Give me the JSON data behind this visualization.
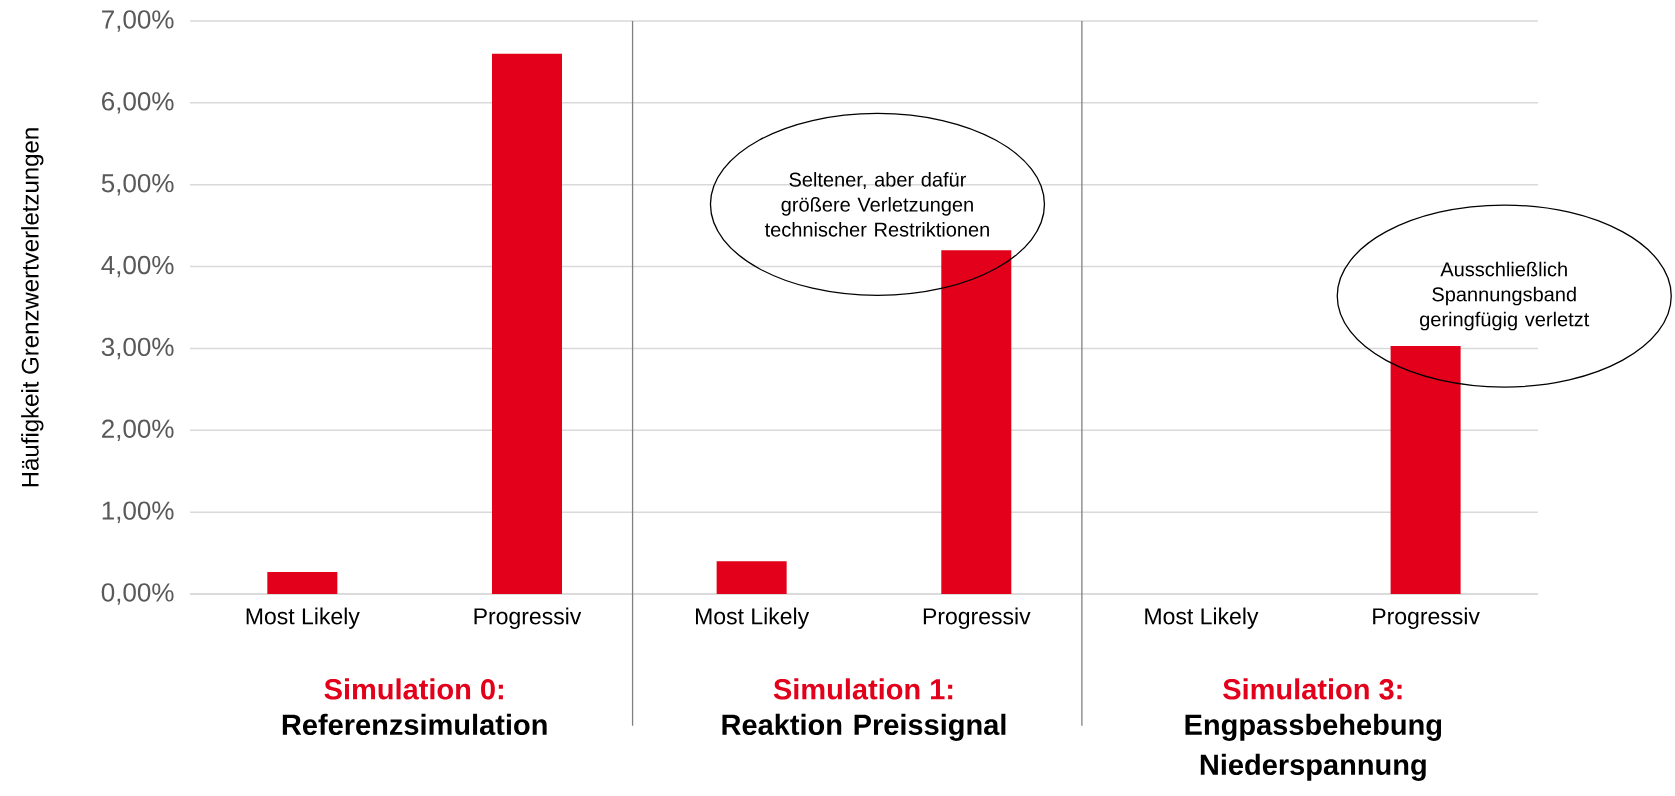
{
  "chart_data": {
    "type": "bar",
    "ylabel": "Häufigkeit Grenzwertverletzungen",
    "categories": [
      "Most Likely",
      "Progressiv",
      "Most Likely",
      "Progressiv",
      "Most Likely",
      "Progressiv"
    ],
    "values": [
      0.27,
      6.6,
      0.4,
      4.2,
      0,
      3.03
    ],
    "color": "#e2001a",
    "ylim": [
      0,
      7
    ],
    "yticks": [
      {
        "value": 0,
        "label": "0,00%"
      },
      {
        "value": 1,
        "label": "1,00%"
      },
      {
        "value": 2,
        "label": "2,00%"
      },
      {
        "value": 3,
        "label": "3,00%"
      },
      {
        "value": 4,
        "label": "4,00%"
      },
      {
        "value": 5,
        "label": "5,00%"
      },
      {
        "value": 6,
        "label": "6,00%"
      },
      {
        "value": 7,
        "label": "7,00%"
      }
    ],
    "grid": "y",
    "annotations": [
      "Seltener, aber dafür größere Verletzungen technischer Restriktionen",
      "Ausschließlich Spannungsband geringfügig verletzt",
      "Simulation 0:",
      "Referenzsimulation",
      "Simulation 1:",
      "Reaktion Preissignal",
      "Simulation 3:",
      "Engpassbehebung Niederspannung"
    ]
  }
}
